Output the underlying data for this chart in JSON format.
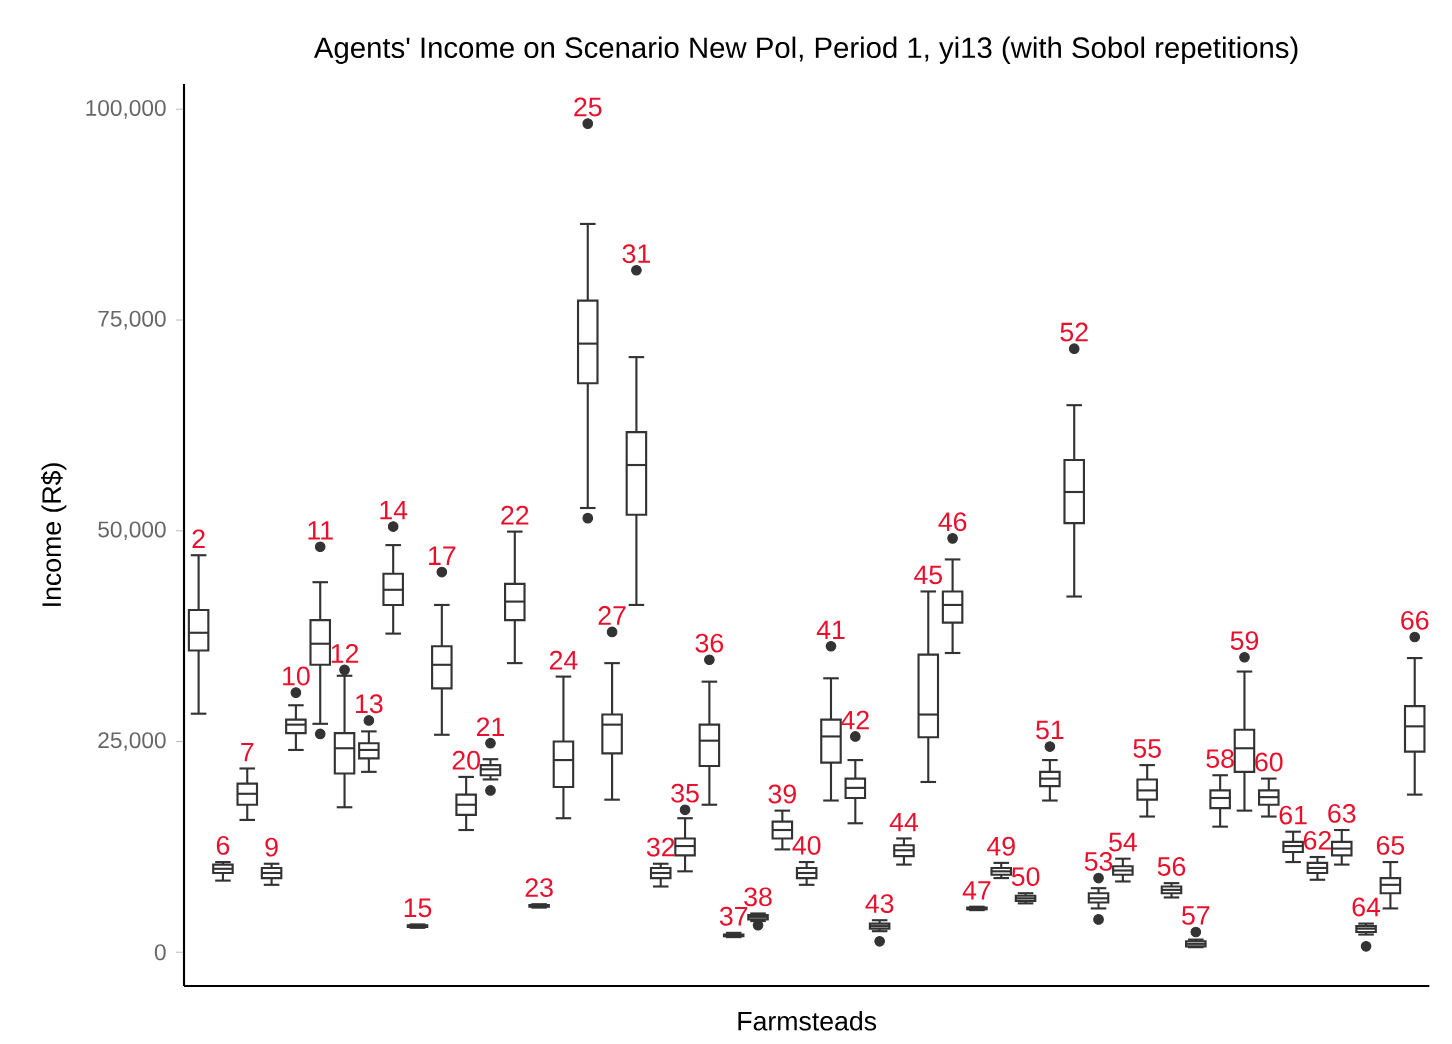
{
  "chart_data": {
    "type": "box",
    "title": "Agents' Income on Scenario New Pol, Period 1, yi13 (with Sobol repetitions)",
    "xlabel": "Farmsteads",
    "ylabel": "Income (R$)",
    "categories": [
      null,
      null,
      null,
      null,
      null,
      null,
      null,
      null,
      null,
      null,
      null,
      null,
      null,
      null,
      null,
      null,
      null,
      null,
      null,
      null,
      null,
      null,
      null,
      null,
      null,
      null,
      null,
      null,
      null,
      null,
      null,
      null,
      null,
      null,
      null,
      null,
      null,
      null,
      null,
      null,
      null,
      null,
      null,
      null,
      null,
      null,
      null,
      null,
      null,
      null,
      null
    ],
    "color": "#333333",
    "ylim": [
      -4000,
      103000
    ],
    "yticks": [
      0,
      {
        "value": 25000,
        "label": "25,000"
      },
      {
        "value": 50000,
        "label": "50,000"
      },
      {
        "value": 75000,
        "label": "75,000"
      },
      {
        "value": 100000,
        "label": "100,000"
      }
    ],
    "tick_labels": "y",
    "grid": false,
    "marker": "circle",
    "boxes": [
      {
        "low": 28300,
        "q1": 35800,
        "median": 37900,
        "q3": 40600,
        "high": 47100
      },
      {
        "low": 8500,
        "q1": 9400,
        "median": 9900,
        "q3": 10400,
        "high": 10700
      },
      {
        "low": 15700,
        "q1": 17500,
        "median": 18800,
        "q3": 20000,
        "high": 21800
      },
      {
        "low": 8000,
        "q1": 8800,
        "median": 9400,
        "q3": 10000,
        "high": 10500
      },
      {
        "low": 24000,
        "q1": 26000,
        "median": 27000,
        "q3": 27600,
        "high": 29300,
        "outliers": [
          30800
        ]
      },
      {
        "low": 27100,
        "q1": 34100,
        "median": 36600,
        "q3": 39400,
        "high": 43900,
        "outliers": [
          48100,
          25900
        ]
      },
      {
        "low": 17200,
        "q1": 21200,
        "median": 24200,
        "q3": 26000,
        "high": 32800,
        "outliers": [
          33500
        ]
      },
      {
        "low": 21400,
        "q1": 23000,
        "median": 24000,
        "q3": 24800,
        "high": 26200,
        "outliers": [
          27500
        ]
      },
      {
        "low": 37800,
        "q1": 41200,
        "median": 43000,
        "q3": 44900,
        "high": 48300,
        "outliers": [
          50500
        ]
      },
      {
        "low": 2900,
        "q1": 3000,
        "median": 3100,
        "q3": 3200,
        "high": 3300
      },
      {
        "low": 25800,
        "q1": 31300,
        "median": 34100,
        "q3": 36300,
        "high": 41200,
        "outliers": [
          45100
        ]
      },
      {
        "low": 14500,
        "q1": 16300,
        "median": 17500,
        "q3": 18700,
        "high": 20800
      },
      {
        "low": 20500,
        "q1": 21000,
        "median": 21700,
        "q3": 22200,
        "high": 22900,
        "outliers": [
          24800,
          19200
        ]
      },
      {
        "low": 34300,
        "q1": 39400,
        "median": 41600,
        "q3": 43700,
        "high": 49900
      },
      {
        "low": 5300,
        "q1": 5400,
        "median": 5500,
        "q3": 5600,
        "high": 5700
      },
      {
        "low": 15900,
        "q1": 19600,
        "median": 22800,
        "q3": 25000,
        "high": 32700
      },
      {
        "low": 52700,
        "q1": 67500,
        "median": 72200,
        "q3": 77300,
        "high": 86400,
        "outliers": [
          98300,
          51500
        ]
      },
      {
        "low": 18100,
        "q1": 23600,
        "median": 27000,
        "q3": 28200,
        "high": 34300,
        "outliers": [
          38000
        ]
      },
      {
        "low": 41200,
        "q1": 51900,
        "median": 57800,
        "q3": 61700,
        "high": 70600,
        "outliers": [
          80900
        ]
      },
      {
        "low": 7800,
        "q1": 8800,
        "median": 9400,
        "q3": 10000,
        "high": 10500
      },
      {
        "low": 9600,
        "q1": 11500,
        "median": 12600,
        "q3": 13500,
        "high": 15900,
        "outliers": [
          16900
        ]
      },
      {
        "low": 17500,
        "q1": 22100,
        "median": 25100,
        "q3": 27000,
        "high": 32100,
        "outliers": [
          34700
        ]
      },
      {
        "low": 1800,
        "q1": 1900,
        "median": 2000,
        "q3": 2100,
        "high": 2300
      },
      {
        "low": 3700,
        "q1": 3900,
        "median": 4200,
        "q3": 4400,
        "high": 4600,
        "outliers": [
          3200
        ]
      },
      {
        "low": 12200,
        "q1": 13500,
        "median": 14500,
        "q3": 15500,
        "high": 16800
      },
      {
        "low": 8000,
        "q1": 8800,
        "median": 9400,
        "q3": 10000,
        "high": 10700
      },
      {
        "low": 18000,
        "q1": 22500,
        "median": 25600,
        "q3": 27600,
        "high": 32500,
        "outliers": [
          36300
        ]
      },
      {
        "low": 15300,
        "q1": 18300,
        "median": 19500,
        "q3": 20600,
        "high": 22800,
        "outliers": [
          25600
        ]
      },
      {
        "low": 2500,
        "q1": 2800,
        "median": 3100,
        "q3": 3400,
        "high": 3800,
        "outliers": [
          1300
        ]
      },
      {
        "low": 10400,
        "q1": 11400,
        "median": 12100,
        "q3": 12700,
        "high": 13500
      },
      {
        "low": 20200,
        "q1": 25500,
        "median": 28200,
        "q3": 35300,
        "high": 42800
      },
      {
        "low": 35500,
        "q1": 39100,
        "median": 41200,
        "q3": 42800,
        "high": 46600,
        "outliers": [
          49100
        ]
      },
      {
        "low": 5000,
        "q1": 5100,
        "median": 5200,
        "q3": 5300,
        "high": 5400
      },
      {
        "low": 8800,
        "q1": 9200,
        "median": 9600,
        "q3": 10000,
        "high": 10600
      },
      {
        "low": 5800,
        "q1": 6100,
        "median": 6400,
        "q3": 6700,
        "high": 7000
      },
      {
        "low": 18000,
        "q1": 19700,
        "median": 20600,
        "q3": 21400,
        "high": 22800,
        "outliers": [
          24400
        ]
      },
      {
        "low": 42200,
        "q1": 50900,
        "median": 54600,
        "q3": 58400,
        "high": 64900,
        "outliers": [
          71600
        ]
      },
      {
        "low": 5200,
        "q1": 5900,
        "median": 6400,
        "q3": 7000,
        "high": 7600,
        "outliers": [
          8800,
          3900
        ]
      },
      {
        "low": 8400,
        "q1": 9200,
        "median": 9700,
        "q3": 10200,
        "high": 11100
      },
      {
        "low": 16100,
        "q1": 18100,
        "median": 19200,
        "q3": 20500,
        "high": 22200
      },
      {
        "low": 6500,
        "q1": 7000,
        "median": 7400,
        "q3": 7800,
        "high": 8200
      },
      {
        "low": 600,
        "q1": 700,
        "median": 1000,
        "q3": 1300,
        "high": 1500,
        "outliers": [
          2400
        ]
      },
      {
        "low": 14900,
        "q1": 17100,
        "median": 18300,
        "q3": 19200,
        "high": 21000
      },
      {
        "low": 16800,
        "q1": 21400,
        "median": 24200,
        "q3": 26400,
        "high": 33300,
        "outliers": [
          35000
        ]
      },
      {
        "low": 16100,
        "q1": 17500,
        "median": 18400,
        "q3": 19200,
        "high": 20600
      },
      {
        "low": 10700,
        "q1": 11900,
        "median": 12600,
        "q3": 13100,
        "high": 14300
      },
      {
        "low": 8600,
        "q1": 9400,
        "median": 10000,
        "q3": 10600,
        "high": 11300
      },
      {
        "low": 10400,
        "q1": 11500,
        "median": 12300,
        "q3": 13100,
        "high": 14500
      },
      {
        "low": 2100,
        "q1": 2400,
        "median": 2800,
        "q3": 3100,
        "high": 3400,
        "outliers": [
          700
        ]
      },
      {
        "low": 5200,
        "q1": 7000,
        "median": 8000,
        "q3": 8800,
        "high": 10700
      },
      {
        "low": 18700,
        "q1": 23800,
        "median": 26800,
        "q3": 29200,
        "high": 34900,
        "outliers": [
          37400
        ]
      }
    ],
    "annotations": [
      "2",
      "6",
      "7",
      "9",
      "10",
      "11",
      "12",
      "13",
      "14",
      "15",
      "17",
      "20",
      "21",
      "22",
      "23",
      "24",
      "25",
      "27",
      "31",
      "32",
      "35",
      "36",
      "37",
      "38",
      "39",
      "40",
      "41",
      "42",
      "43",
      "44",
      "45",
      "46",
      "47",
      "49",
      "50",
      "51",
      "52",
      "53",
      "54",
      "55",
      "56",
      "57",
      "58",
      "59",
      "60",
      "61",
      "62",
      "63",
      "64",
      "65",
      "66"
    ]
  }
}
